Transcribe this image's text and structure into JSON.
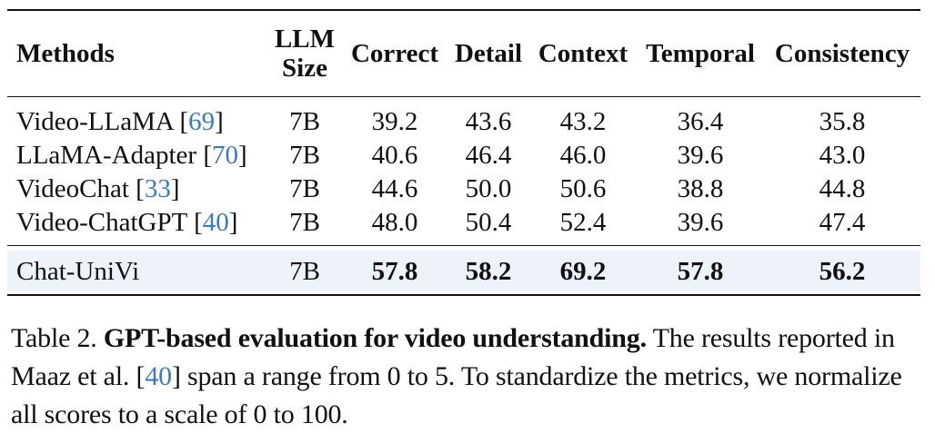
{
  "table": {
    "headers": {
      "methods": "Methods",
      "llm_size_line1": "LLM",
      "llm_size_line2": "Size",
      "correct": "Correct",
      "detail": "Detail",
      "context": "Context",
      "temporal": "Temporal",
      "consistency": "Consistency"
    },
    "rows": [
      {
        "method": "Video-LLaMA",
        "cite": "69",
        "size": "7B",
        "correct": "39.2",
        "detail": "43.6",
        "context": "43.2",
        "temporal": "36.4",
        "consistency": "35.8"
      },
      {
        "method": "LLaMA-Adapter",
        "cite": "70",
        "size": "7B",
        "correct": "40.6",
        "detail": "46.4",
        "context": "46.0",
        "temporal": "39.6",
        "consistency": "43.0"
      },
      {
        "method": "VideoChat",
        "cite": "33",
        "size": "7B",
        "correct": "44.6",
        "detail": "50.0",
        "context": "50.6",
        "temporal": "38.8",
        "consistency": "44.8"
      },
      {
        "method": "Video-ChatGPT",
        "cite": "40",
        "size": "7B",
        "correct": "48.0",
        "detail": "50.4",
        "context": "52.4",
        "temporal": "39.6",
        "consistency": "47.4"
      }
    ],
    "highlight_row": {
      "method": "Chat-UniVi",
      "size": "7B",
      "correct": "57.8",
      "detail": "58.2",
      "context": "69.2",
      "temporal": "57.8",
      "consistency": "56.2"
    },
    "highlight_color": "#eef3fb",
    "citation_color": "#3a7bbf"
  },
  "caption": {
    "label": "Table 2.",
    "title": "GPT-based evaluation for video understanding.",
    "text_before_cite": "The results reported in Maaz et al.",
    "cite": "40",
    "text_after_cite": "span a range from 0 to 5. To standardize the metrics, we normalize all scores to a scale of 0 to 100."
  }
}
